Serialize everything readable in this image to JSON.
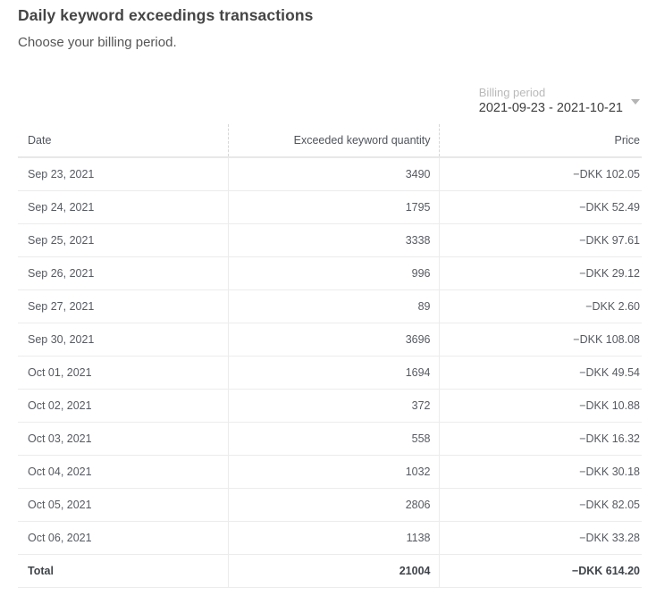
{
  "header": {
    "title": "Daily keyword exceedings transactions",
    "subtitle": "Choose your billing period."
  },
  "billing": {
    "label": "Billing period",
    "value": "2021-09-23 - 2021-10-21",
    "chevron_icon": "chevron-down"
  },
  "table": {
    "columns": {
      "date": "Date",
      "quantity": "Exceeded keyword quantity",
      "price": "Price"
    },
    "rows": [
      {
        "date": "Sep 23, 2021",
        "quantity": "3490",
        "price": "−DKK 102.05"
      },
      {
        "date": "Sep 24, 2021",
        "quantity": "1795",
        "price": "−DKK 52.49"
      },
      {
        "date": "Sep 25, 2021",
        "quantity": "3338",
        "price": "−DKK 97.61"
      },
      {
        "date": "Sep 26, 2021",
        "quantity": "996",
        "price": "−DKK 29.12"
      },
      {
        "date": "Sep 27, 2021",
        "quantity": "89",
        "price": "−DKK 2.60"
      },
      {
        "date": "Sep 30, 2021",
        "quantity": "3696",
        "price": "−DKK 108.08"
      },
      {
        "date": "Oct 01, 2021",
        "quantity": "1694",
        "price": "−DKK 49.54"
      },
      {
        "date": "Oct 02, 2021",
        "quantity": "372",
        "price": "−DKK 10.88"
      },
      {
        "date": "Oct 03, 2021",
        "quantity": "558",
        "price": "−DKK 16.32"
      },
      {
        "date": "Oct 04, 2021",
        "quantity": "1032",
        "price": "−DKK 30.18"
      },
      {
        "date": "Oct 05, 2021",
        "quantity": "2806",
        "price": "−DKK 82.05"
      },
      {
        "date": "Oct 06, 2021",
        "quantity": "1138",
        "price": "−DKK 33.28"
      }
    ],
    "total": {
      "label": "Total",
      "quantity": "21004",
      "price": "−DKK 614.20"
    }
  },
  "colors": {
    "title_text": "#454545",
    "body_text": "#565a61",
    "muted_label": "#b9b9b9",
    "row_border": "#ececec",
    "header_border": "#e8e8e8",
    "dashed_border": "#d7d7d7",
    "total_border": "#d6d6d6",
    "background": "#ffffff"
  }
}
